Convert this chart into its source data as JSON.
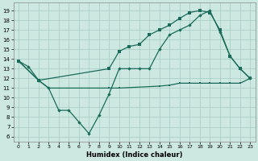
{
  "xlabel": "Humidex (Indice chaleur)",
  "background_color": "#cce8e0",
  "grid_color": "#aacfc8",
  "line_color": "#1a6b5a",
  "xlim": [
    -0.5,
    23.5
  ],
  "ylim": [
    5.5,
    19.8
  ],
  "xticks": [
    0,
    1,
    2,
    3,
    4,
    5,
    6,
    7,
    8,
    9,
    10,
    11,
    12,
    13,
    14,
    15,
    16,
    17,
    18,
    19,
    20,
    21,
    22,
    23
  ],
  "yticks": [
    6,
    7,
    8,
    9,
    10,
    11,
    12,
    13,
    14,
    15,
    16,
    17,
    18,
    19
  ],
  "series1_x": [
    0,
    1,
    2,
    3,
    4,
    5,
    6,
    7,
    8,
    9,
    10,
    11,
    12,
    13,
    14,
    15,
    16,
    17,
    18,
    19,
    20,
    21,
    22,
    23
  ],
  "series1_y": [
    13.8,
    13.2,
    11.8,
    11.0,
    8.7,
    8.7,
    7.5,
    6.3,
    8.2,
    10.4,
    13.0,
    13.0,
    13.0,
    13.0,
    15.0,
    16.5,
    17.0,
    17.5,
    18.5,
    19.0,
    16.8,
    14.3,
    13.0,
    12.0
  ],
  "series2_x": [
    0,
    2,
    9,
    10,
    11,
    12,
    13,
    14,
    15,
    16,
    17,
    18,
    19,
    20,
    21,
    22,
    23
  ],
  "series2_y": [
    13.8,
    11.8,
    13.0,
    14.8,
    15.3,
    15.5,
    16.5,
    17.0,
    17.5,
    18.2,
    18.8,
    19.0,
    18.8,
    17.0,
    14.3,
    13.0,
    12.0
  ],
  "series3_x": [
    0,
    2,
    3,
    9,
    10,
    14,
    15,
    16,
    17,
    18,
    19,
    20,
    21,
    22,
    23
  ],
  "series3_y": [
    13.8,
    11.8,
    11.0,
    11.0,
    11.0,
    11.2,
    11.3,
    11.5,
    11.5,
    11.5,
    11.5,
    11.5,
    11.5,
    11.5,
    12.0
  ]
}
